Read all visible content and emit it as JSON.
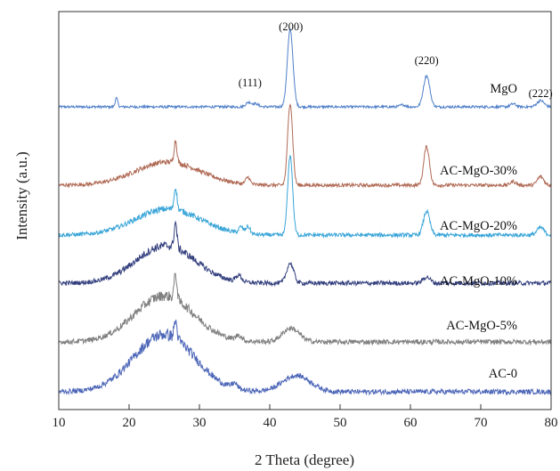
{
  "chart_data": {
    "type": "line",
    "title": "",
    "xlabel": "2 Theta (degree)",
    "ylabel": "Intensity (a.u.)",
    "xlim": [
      10,
      80
    ],
    "xticks": [
      "10",
      "20",
      "30",
      "40",
      "50",
      "60",
      "70",
      "80"
    ],
    "yticks": false,
    "grid": false,
    "legend": "none; each curve labeled at its right end",
    "peak_labels": [
      {
        "text": "(111)",
        "x": 37.2
      },
      {
        "text": "(200)",
        "x": 43.0
      },
      {
        "text": "(220)",
        "x": 62.3
      },
      {
        "text": "(222)",
        "x": 78.5
      }
    ],
    "series": [
      {
        "name": "MgO",
        "color": "#4f7fc8",
        "baseline": 0.94,
        "hump": {
          "center": 0,
          "width": 1,
          "height": 0
        },
        "peaks": [
          [
            18.2,
            0.18,
            0.35
          ],
          [
            37.0,
            0.4,
            0.18
          ],
          [
            38.0,
            0.4,
            0.12
          ],
          [
            42.9,
            0.4,
            3.1
          ],
          [
            58.9,
            0.4,
            0.08
          ],
          [
            62.3,
            0.45,
            1.25
          ],
          [
            74.6,
            0.4,
            0.12
          ],
          [
            78.5,
            0.5,
            0.25
          ]
        ],
        "noise": 0.05
      },
      {
        "name": "AC-MgO-30%",
        "color": "#b06a55",
        "baseline": 0.6,
        "hump": {
          "center": 25.5,
          "width": 4.6,
          "height": 0.93
        },
        "peaks": [
          [
            26.6,
            0.2,
            0.9
          ],
          [
            36.9,
            0.3,
            0.28
          ],
          [
            42.9,
            0.35,
            3.3
          ],
          [
            62.3,
            0.4,
            1.55
          ],
          [
            74.6,
            0.4,
            0.15
          ],
          [
            78.5,
            0.45,
            0.35
          ]
        ],
        "noise": 0.07
      },
      {
        "name": "AC-MgO-20%",
        "color": "#39a5d8",
        "baseline": 0.5,
        "hump": {
          "center": 25.5,
          "width": 4.6,
          "height": 1.05
        },
        "peaks": [
          [
            26.6,
            0.2,
            0.9
          ],
          [
            35.9,
            0.3,
            0.25
          ],
          [
            36.9,
            0.3,
            0.3
          ],
          [
            42.9,
            0.35,
            3.2
          ],
          [
            62.3,
            0.45,
            0.95
          ],
          [
            78.5,
            0.5,
            0.3
          ]
        ],
        "noise": 0.08
      },
      {
        "name": "AC-MgO-10%",
        "color": "#34407e",
        "baseline": 0.55,
        "hump": {
          "center": 25.2,
          "width": 4.2,
          "height": 1.5
        },
        "peaks": [
          [
            26.6,
            0.2,
            1.0
          ],
          [
            35.6,
            0.4,
            0.25
          ],
          [
            42.9,
            0.5,
            0.8
          ],
          [
            62.3,
            0.5,
            0.25
          ]
        ],
        "noise": 0.09
      },
      {
        "name": "AC-MgO-5%",
        "color": "#7f7f7f",
        "baseline": 0.45,
        "hump": {
          "center": 25.0,
          "width": 4.2,
          "height": 1.85
        },
        "peaks": [
          [
            26.6,
            0.2,
            1.0
          ],
          [
            35.6,
            0.4,
            0.2
          ],
          [
            43.0,
            1.2,
            0.55
          ]
        ],
        "noise": 0.1
      },
      {
        "name": "AC-0",
        "color": "#4d66b8",
        "baseline": 0.4,
        "hump": {
          "center": 25.0,
          "width": 4.3,
          "height": 2.3
        },
        "peaks": [
          [
            26.6,
            0.2,
            0.7
          ],
          [
            35.0,
            0.4,
            0.2
          ],
          [
            43.8,
            2.0,
            0.65
          ]
        ],
        "noise": 0.1
      }
    ]
  }
}
